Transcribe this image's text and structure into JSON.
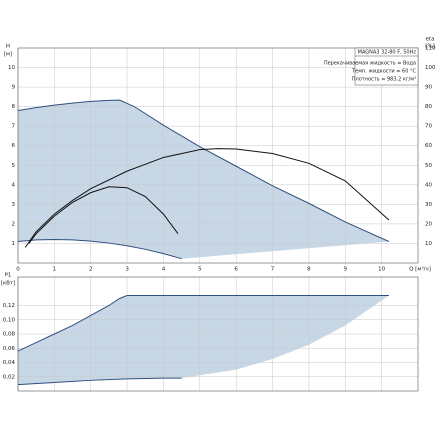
{
  "chart_data": [
    {
      "type": "line",
      "y_label": "H",
      "y_unit": "[м]",
      "y2_label": "eta",
      "y2_unit": "[%]",
      "x_label": "Q [м³/ч]",
      "info": [
        "MAGNA3 32-80 F, 50Hz",
        "Перекачиваемая жидкость = Вода",
        "Темп. жидкости = 60 °C",
        "Плотность = 983.2 кг/м³"
      ],
      "xlim": [
        0,
        11
      ],
      "xticks": [
        0,
        1,
        2,
        3,
        4,
        5,
        6,
        7,
        8,
        9,
        10
      ],
      "ylim": [
        0,
        11
      ],
      "yticks": [
        1,
        2,
        3,
        4,
        5,
        6,
        7,
        8,
        9,
        10
      ],
      "y2lim": [
        0,
        110
      ],
      "y2ticks": [
        10,
        20,
        30,
        40,
        50,
        60,
        70,
        80,
        90,
        100,
        110
      ],
      "grid": true,
      "x_tick_labels": true,
      "area": [
        0,
        1
      ],
      "area_color": "#c8d7e6",
      "series": [
        {
          "color": "#2f4f7f",
          "x": [
            0,
            0.5,
            1,
            1.5,
            2,
            2.5,
            2.8,
            3.2,
            4,
            5,
            6,
            7,
            8,
            9,
            10.2
          ],
          "values": [
            7.8,
            7.95,
            8.08,
            8.18,
            8.27,
            8.32,
            8.33,
            8.0,
            7.05,
            5.95,
            4.95,
            3.95,
            3.05,
            2.1,
            1.1
          ]
        },
        {
          "color": "#2f4f7f",
          "x": [
            0,
            0.5,
            1,
            1.5,
            2,
            2.5,
            3,
            3.5,
            4,
            4.5
          ],
          "values": [
            1.1,
            1.18,
            1.2,
            1.18,
            1.12,
            1.02,
            0.88,
            0.7,
            0.48,
            0.22
          ]
        },
        {
          "color": "#111111",
          "axis": "y2",
          "x": [
            0.2,
            0.5,
            1,
            1.5,
            2,
            3,
            4,
            5,
            5.5,
            6,
            7,
            8,
            9,
            10.2
          ],
          "values": [
            8,
            16,
            25,
            32,
            38,
            47,
            54,
            58,
            58.5,
            58.3,
            56,
            51,
            42,
            22
          ]
        },
        {
          "color": "#111111",
          "axis": "y2",
          "x": [
            0.3,
            0.5,
            1,
            1.5,
            2,
            2.5,
            3,
            3.5,
            4,
            4.4
          ],
          "values": [
            10,
            15,
            24,
            31,
            36,
            39,
            38.5,
            34,
            25,
            15
          ]
        }
      ]
    },
    {
      "type": "line",
      "y_label": "P1",
      "y_unit": "[кВт]",
      "xlim": [
        0,
        11
      ],
      "xticks": [
        0,
        1,
        2,
        3,
        4,
        5,
        6,
        7,
        8,
        9,
        10
      ],
      "ylim": [
        0,
        0.16
      ],
      "yticks": [
        {
          "value": 0.02,
          "label": "0,02"
        },
        {
          "value": 0.04,
          "label": "0,04"
        },
        {
          "value": 0.06,
          "label": "0,06"
        },
        {
          "value": 0.08,
          "label": "0,08"
        },
        {
          "value": 0.1,
          "label": "0,10"
        },
        {
          "value": 0.12,
          "label": "0,12"
        }
      ],
      "grid": true,
      "x_tick_labels": false,
      "area": [
        0,
        2,
        1
      ],
      "area_color": "#c8d7e6",
      "series": [
        {
          "color": "#2f4f7f",
          "x": [
            0,
            0.5,
            1,
            1.5,
            2,
            2.5,
            2.8,
            3,
            4,
            6,
            8,
            10.2
          ],
          "values": [
            0.056,
            0.068,
            0.08,
            0.092,
            0.106,
            0.12,
            0.13,
            0.134,
            0.134,
            0.134,
            0.134,
            0.134
          ]
        },
        {
          "color": "#2f4f7f",
          "x": [
            0,
            1,
            2,
            3,
            4,
            4.5
          ],
          "values": [
            0.009,
            0.012,
            0.015,
            0.017,
            0.018,
            0.018
          ]
        },
        {
          "line": false,
          "x": [
            4.5,
            6,
            7,
            8,
            9,
            10.2
          ],
          "values": [
            0.018,
            0.03,
            0.045,
            0.065,
            0.092,
            0.134
          ]
        }
      ]
    }
  ]
}
